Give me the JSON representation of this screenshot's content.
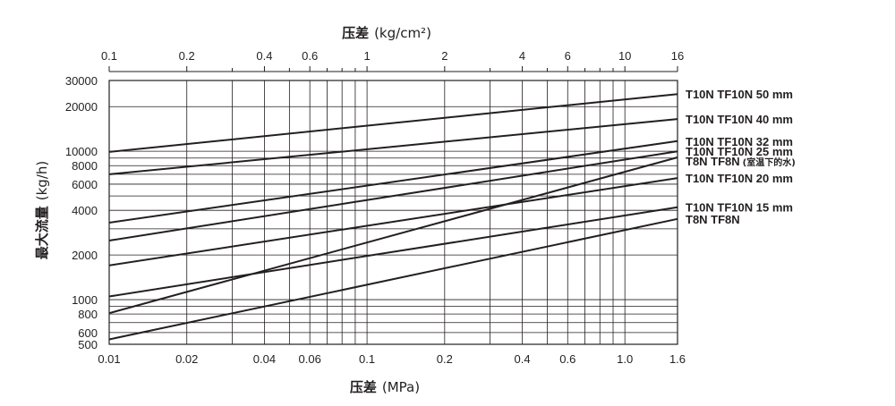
{
  "chart_data": {
    "type": "line",
    "x_scale": "log",
    "y_scale": "log",
    "xlabel_bottom_cjk": "压差",
    "xlabel_bottom_unit": "(MPa)",
    "xlabel_top_cjk": "压差",
    "xlabel_top_unit": "(kg/cm²)",
    "ylabel_cjk": "最大流量",
    "ylabel_unit": "(kg/h)",
    "xlim": [
      0.01,
      1.6
    ],
    "ylim": [
      500,
      30000
    ],
    "top_xlim": [
      0.1,
      16
    ],
    "x_tick_labels": [
      "0.01",
      "0.02",
      "0.04",
      "0.06",
      "0.1",
      "0.2",
      "0.4",
      "0.6",
      "1.0",
      "1.6"
    ],
    "x_ticks": [
      0.01,
      0.02,
      0.04,
      0.06,
      0.1,
      0.2,
      0.4,
      0.6,
      1.0,
      1.6
    ],
    "top_tick_labels": [
      "0.1",
      "0.2",
      "0.4",
      "0.6",
      "1",
      "2",
      "4",
      "6",
      "10",
      "16"
    ],
    "top_ticks": [
      0.1,
      0.2,
      0.4,
      0.6,
      1,
      2,
      4,
      6,
      10,
      16
    ],
    "y_tick_labels": [
      "30000",
      "20000",
      "10000",
      "8000",
      "6000",
      "4000",
      "2000",
      "1000",
      "800",
      "600",
      "500"
    ],
    "y_ticks": [
      30000,
      20000,
      10000,
      8000,
      6000,
      4000,
      2000,
      1000,
      800,
      600,
      500
    ],
    "x_grid": [
      0.02,
      0.03,
      0.04,
      0.05,
      0.06,
      0.07,
      0.08,
      0.09,
      0.1,
      0.2,
      0.3,
      0.4,
      0.5,
      0.6,
      0.7,
      0.8,
      0.9,
      1.0
    ],
    "y_grid": [
      1000,
      2000,
      3000,
      4000,
      5000,
      6000,
      7000,
      8000,
      9000,
      10000,
      20000,
      30000,
      500,
      600,
      700,
      800,
      900
    ],
    "grid": true,
    "series": [
      {
        "name": "T10N TF10N 50 mm",
        "x": [
          0.01,
          1.6
        ],
        "y": [
          9900,
          24300
        ]
      },
      {
        "name": "T10N TF10N 40 mm",
        "x": [
          0.01,
          1.6
        ],
        "y": [
          7000,
          16500
        ]
      },
      {
        "name": "T10N TF10N 32 mm",
        "x": [
          0.01,
          1.6
        ],
        "y": [
          3300,
          11700
        ]
      },
      {
        "name": "T10N TF10N 25 mm",
        "x": [
          0.01,
          1.6
        ],
        "y": [
          2500,
          10000
        ]
      },
      {
        "name": "T8N TF8N",
        "note": "(室温下的水)",
        "x": [
          0.01,
          1.6
        ],
        "y": [
          810,
          9100
        ]
      },
      {
        "name": "T10N TF10N 20 mm",
        "x": [
          0.01,
          1.6
        ],
        "y": [
          1700,
          6600
        ]
      },
      {
        "name": "T10N TF10N 15 mm",
        "x": [
          0.01,
          1.6
        ],
        "y": [
          1050,
          4200
        ]
      },
      {
        "name": "T8N TF8N",
        "x": [
          0.01,
          1.6
        ],
        "y": [
          540,
          3500
        ]
      }
    ]
  }
}
